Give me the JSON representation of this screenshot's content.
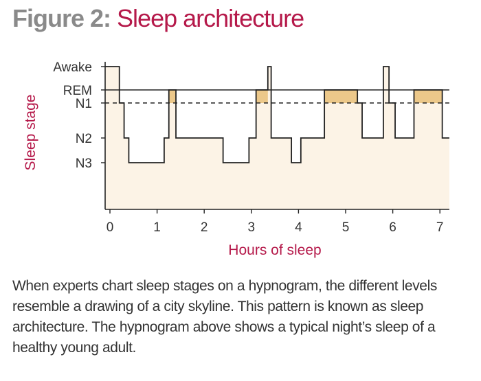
{
  "figure": {
    "prefix": "Figure 2:",
    "name": "Sleep architecture",
    "caption": "When experts chart sleep stages on a hypnogram, the different levels resemble a drawing of a city skyline. This pattern is known as sleep architecture. The hypnogram above shows a typical night’s sleep of a healthy young adult."
  },
  "colors": {
    "title_gray": "#8a8a8a",
    "accent": "#b5194a",
    "fill": "#fcf3e6",
    "rem_fill": "#ecc88a",
    "line": "#222222",
    "text": "#333333"
  },
  "chart_data": {
    "type": "line",
    "subtype": "hypnogram",
    "xlabel": "Hours of sleep",
    "ylabel": "Sleep stage",
    "xlim": [
      0,
      7
    ],
    "x_ticks": [
      0,
      1,
      2,
      3,
      4,
      5,
      6,
      7
    ],
    "y_categories": [
      "Awake",
      "REM",
      "N1",
      "N2",
      "N3"
    ],
    "grid": false,
    "legend": "none",
    "series": [
      {
        "points": [
          {
            "x": 0.0,
            "stage": "Awake"
          },
          {
            "x": 0.2,
            "stage": "N1"
          },
          {
            "x": 0.3,
            "stage": "N2"
          },
          {
            "x": 0.4,
            "stage": "N3"
          },
          {
            "x": 1.15,
            "stage": "N2"
          },
          {
            "x": 1.25,
            "stage": "REM"
          },
          {
            "x": 1.4,
            "stage": "N2"
          },
          {
            "x": 2.4,
            "stage": "N3"
          },
          {
            "x": 2.95,
            "stage": "N2"
          },
          {
            "x": 3.1,
            "stage": "REM"
          },
          {
            "x": 3.35,
            "stage": "Awake"
          },
          {
            "x": 3.42,
            "stage": "N2"
          },
          {
            "x": 3.85,
            "stage": "N3"
          },
          {
            "x": 4.05,
            "stage": "N2"
          },
          {
            "x": 4.55,
            "stage": "REM"
          },
          {
            "x": 5.25,
            "stage": "N1"
          },
          {
            "x": 5.35,
            "stage": "N2"
          },
          {
            "x": 5.8,
            "stage": "Awake"
          },
          {
            "x": 5.92,
            "stage": "N1"
          },
          {
            "x": 6.05,
            "stage": "N2"
          },
          {
            "x": 6.45,
            "stage": "REM"
          },
          {
            "x": 7.05,
            "stage": "N2"
          }
        ],
        "end_x": 7.2
      }
    ],
    "reference_lines": [
      {
        "stage": "REM",
        "style": "solid"
      },
      {
        "stage": "N1",
        "style": "dashed"
      }
    ]
  }
}
